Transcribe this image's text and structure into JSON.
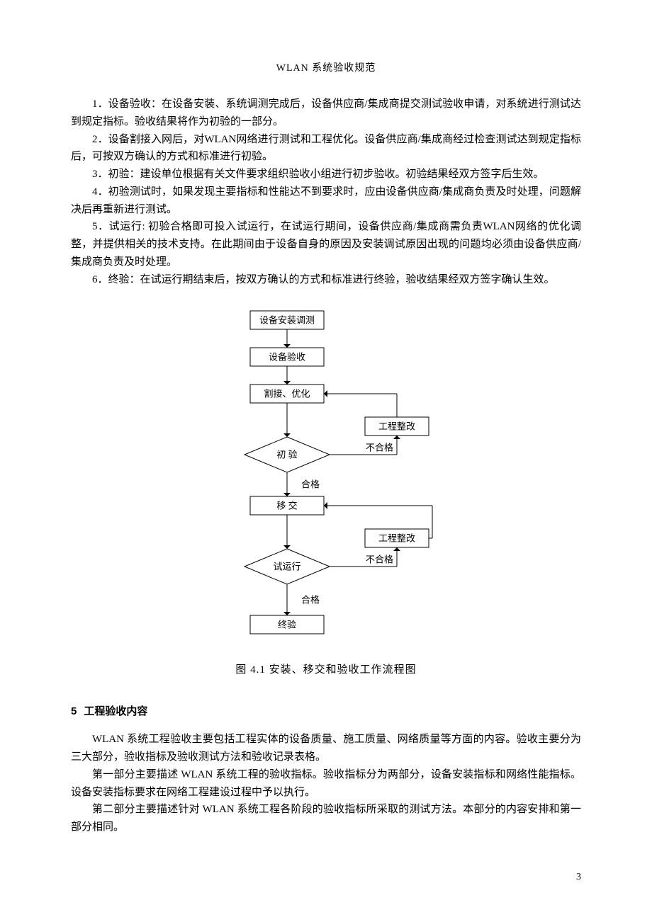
{
  "header": {
    "title": "WLAN 系统验收规范"
  },
  "paragraphs": {
    "p1": "1．设备验收：在设备安装、系统调测完成后，设备供应商/集成商提交测试验收申请，对系统进行测试达到规定指标。验收结果将作为初验的一部分。",
    "p2": "2．设备割接入网后，对WLAN网络进行测试和工程优化。设备供应商/集成商经过检查测试达到规定指标后，可按双方确认的方式和标准进行初验。",
    "p3": "3．初验：建设单位根据有关文件要求组织验收小组进行初步验收。初验结果经双方签字后生效。",
    "p4": "4．初验测试时，如果发现主要指标和性能达不到要求时，应由设备供应商/集成商负责及时处理，问题解决后再重新进行测试。",
    "p5": "5．试运行: 初验合格即可投入试运行，在试运行期间，设备供应商/集成商需负责WLAN网络的优化调整，并提供相关的技术支持。在此期间由于设备自身的原因及安装调试原因出现的问题均必须由设备供应商/集成商负责及时处理。",
    "p6": "6．终验：在试运行期结束后，按双方确认的方式和标准进行终验，验收结果经双方签字确认生效。"
  },
  "flowchart": {
    "type": "flowchart",
    "nodes": {
      "n1": "设备安装调测",
      "n2": "设备验收",
      "n3": "割接、优化",
      "d1": "初   验",
      "r1": "工程整改",
      "n4": "移   交",
      "d2": "试运行",
      "r2": "工程整改",
      "n5": "终验"
    },
    "edge_labels": {
      "pass": "合格",
      "fail": "不合格"
    },
    "style": {
      "stroke": "#000000",
      "stroke_width": 1,
      "fill": "#ffffff",
      "font_size": 13,
      "font_family": "SimSun"
    },
    "caption": "图 4.1   安装、移交和验收工作流程图"
  },
  "section5": {
    "num": "5",
    "title": "工程验收内容",
    "p1": "WLAN 系统工程验收主要包括工程实体的设备质量、施工质量、网络质量等方面的内容。验收主要分为三大部分，验收指标及验收测试方法和验收记录表格。",
    "p2": "第一部分主要描述 WLAN 系统工程的验收指标。验收指标分为两部分，设备安装指标和网络性能指标。设备安装指标要求在网络工程建设过程中予以执行。",
    "p3": "第二部分主要描述针对 WLAN 系统工程各阶段的验收指标所采取的测试方法。本部分的内容安排和第一部分相同。"
  },
  "page_number": "3"
}
